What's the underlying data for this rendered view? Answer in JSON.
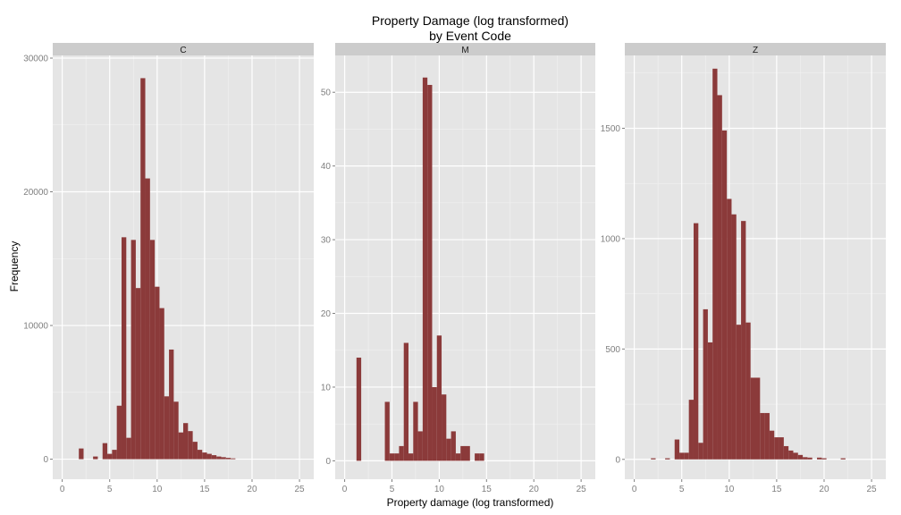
{
  "chart_data": {
    "type": "bar",
    "title": "Property Damage (log transformed)",
    "subtitle": "by Event Code",
    "xlabel": "Property damage (log transformed)",
    "ylabel": "Frequency",
    "bar_color": "#8b3a3a",
    "panel_background": "#e5e5e5",
    "strip_background": "#cccccc",
    "grid_color": "#ffffff",
    "xlim": [
      -1,
      26.5
    ],
    "x_ticks": [
      0,
      5,
      10,
      15,
      20,
      25
    ],
    "bin_width": 0.5,
    "facets": [
      {
        "label": "C",
        "ylim": [
          -1500,
          30200
        ],
        "y_ticks": [
          0,
          10000,
          20000,
          30000
        ],
        "bins": [
          {
            "x": 2.0,
            "value": 800
          },
          {
            "x": 3.5,
            "value": 200
          },
          {
            "x": 4.5,
            "value": 1200
          },
          {
            "x": 5.0,
            "value": 400
          },
          {
            "x": 5.5,
            "value": 700
          },
          {
            "x": 6.0,
            "value": 4000
          },
          {
            "x": 6.5,
            "value": 16600
          },
          {
            "x": 7.0,
            "value": 1600
          },
          {
            "x": 7.5,
            "value": 16400
          },
          {
            "x": 8.0,
            "value": 12800
          },
          {
            "x": 8.5,
            "value": 28500
          },
          {
            "x": 9.0,
            "value": 21000
          },
          {
            "x": 9.5,
            "value": 16400
          },
          {
            "x": 10.0,
            "value": 12900
          },
          {
            "x": 10.5,
            "value": 11300
          },
          {
            "x": 11.0,
            "value": 4700
          },
          {
            "x": 11.5,
            "value": 8200
          },
          {
            "x": 12.0,
            "value": 4300
          },
          {
            "x": 12.5,
            "value": 2000
          },
          {
            "x": 13.0,
            "value": 2700
          },
          {
            "x": 13.5,
            "value": 2100
          },
          {
            "x": 14.0,
            "value": 1300
          },
          {
            "x": 14.5,
            "value": 700
          },
          {
            "x": 15.0,
            "value": 500
          },
          {
            "x": 15.5,
            "value": 400
          },
          {
            "x": 16.0,
            "value": 300
          },
          {
            "x": 16.5,
            "value": 200
          },
          {
            "x": 17.0,
            "value": 150
          },
          {
            "x": 17.5,
            "value": 100
          },
          {
            "x": 18.0,
            "value": 60
          }
        ]
      },
      {
        "label": "M",
        "ylim": [
          -2.5,
          55
        ],
        "y_ticks": [
          0,
          10,
          20,
          30,
          40,
          50
        ],
        "bins": [
          {
            "x": 1.5,
            "value": 14
          },
          {
            "x": 4.5,
            "value": 8
          },
          {
            "x": 5.0,
            "value": 1
          },
          {
            "x": 5.5,
            "value": 1
          },
          {
            "x": 6.0,
            "value": 2
          },
          {
            "x": 6.5,
            "value": 16
          },
          {
            "x": 7.0,
            "value": 1
          },
          {
            "x": 7.5,
            "value": 8
          },
          {
            "x": 8.0,
            "value": 4
          },
          {
            "x": 8.5,
            "value": 52
          },
          {
            "x": 9.0,
            "value": 51
          },
          {
            "x": 9.5,
            "value": 10
          },
          {
            "x": 10.0,
            "value": 17
          },
          {
            "x": 10.5,
            "value": 9
          },
          {
            "x": 11.0,
            "value": 3
          },
          {
            "x": 11.5,
            "value": 4
          },
          {
            "x": 12.0,
            "value": 1
          },
          {
            "x": 12.5,
            "value": 2
          },
          {
            "x": 13.0,
            "value": 2
          },
          {
            "x": 14.0,
            "value": 1
          },
          {
            "x": 14.5,
            "value": 1
          }
        ]
      },
      {
        "label": "Z",
        "ylim": [
          -90,
          1830
        ],
        "y_ticks": [
          0,
          500,
          1000,
          1500
        ],
        "bins": [
          {
            "x": 2.0,
            "value": 5
          },
          {
            "x": 3.5,
            "value": 5
          },
          {
            "x": 4.5,
            "value": 90
          },
          {
            "x": 5.0,
            "value": 30
          },
          {
            "x": 5.5,
            "value": 30
          },
          {
            "x": 6.0,
            "value": 270
          },
          {
            "x": 6.5,
            "value": 1070
          },
          {
            "x": 7.0,
            "value": 75
          },
          {
            "x": 7.5,
            "value": 680
          },
          {
            "x": 8.0,
            "value": 530
          },
          {
            "x": 8.5,
            "value": 1770
          },
          {
            "x": 9.0,
            "value": 1650
          },
          {
            "x": 9.5,
            "value": 1490
          },
          {
            "x": 10.0,
            "value": 1180
          },
          {
            "x": 10.5,
            "value": 1110
          },
          {
            "x": 11.0,
            "value": 610
          },
          {
            "x": 11.5,
            "value": 1080
          },
          {
            "x": 12.0,
            "value": 620
          },
          {
            "x": 12.5,
            "value": 370
          },
          {
            "x": 13.0,
            "value": 370
          },
          {
            "x": 13.5,
            "value": 210
          },
          {
            "x": 14.0,
            "value": 210
          },
          {
            "x": 14.5,
            "value": 130
          },
          {
            "x": 15.0,
            "value": 100
          },
          {
            "x": 15.5,
            "value": 100
          },
          {
            "x": 16.0,
            "value": 60
          },
          {
            "x": 16.5,
            "value": 40
          },
          {
            "x": 17.0,
            "value": 30
          },
          {
            "x": 17.5,
            "value": 20
          },
          {
            "x": 18.0,
            "value": 10
          },
          {
            "x": 18.5,
            "value": 8
          },
          {
            "x": 19.5,
            "value": 8
          },
          {
            "x": 20.0,
            "value": 5
          },
          {
            "x": 22.0,
            "value": 5
          }
        ]
      }
    ]
  }
}
